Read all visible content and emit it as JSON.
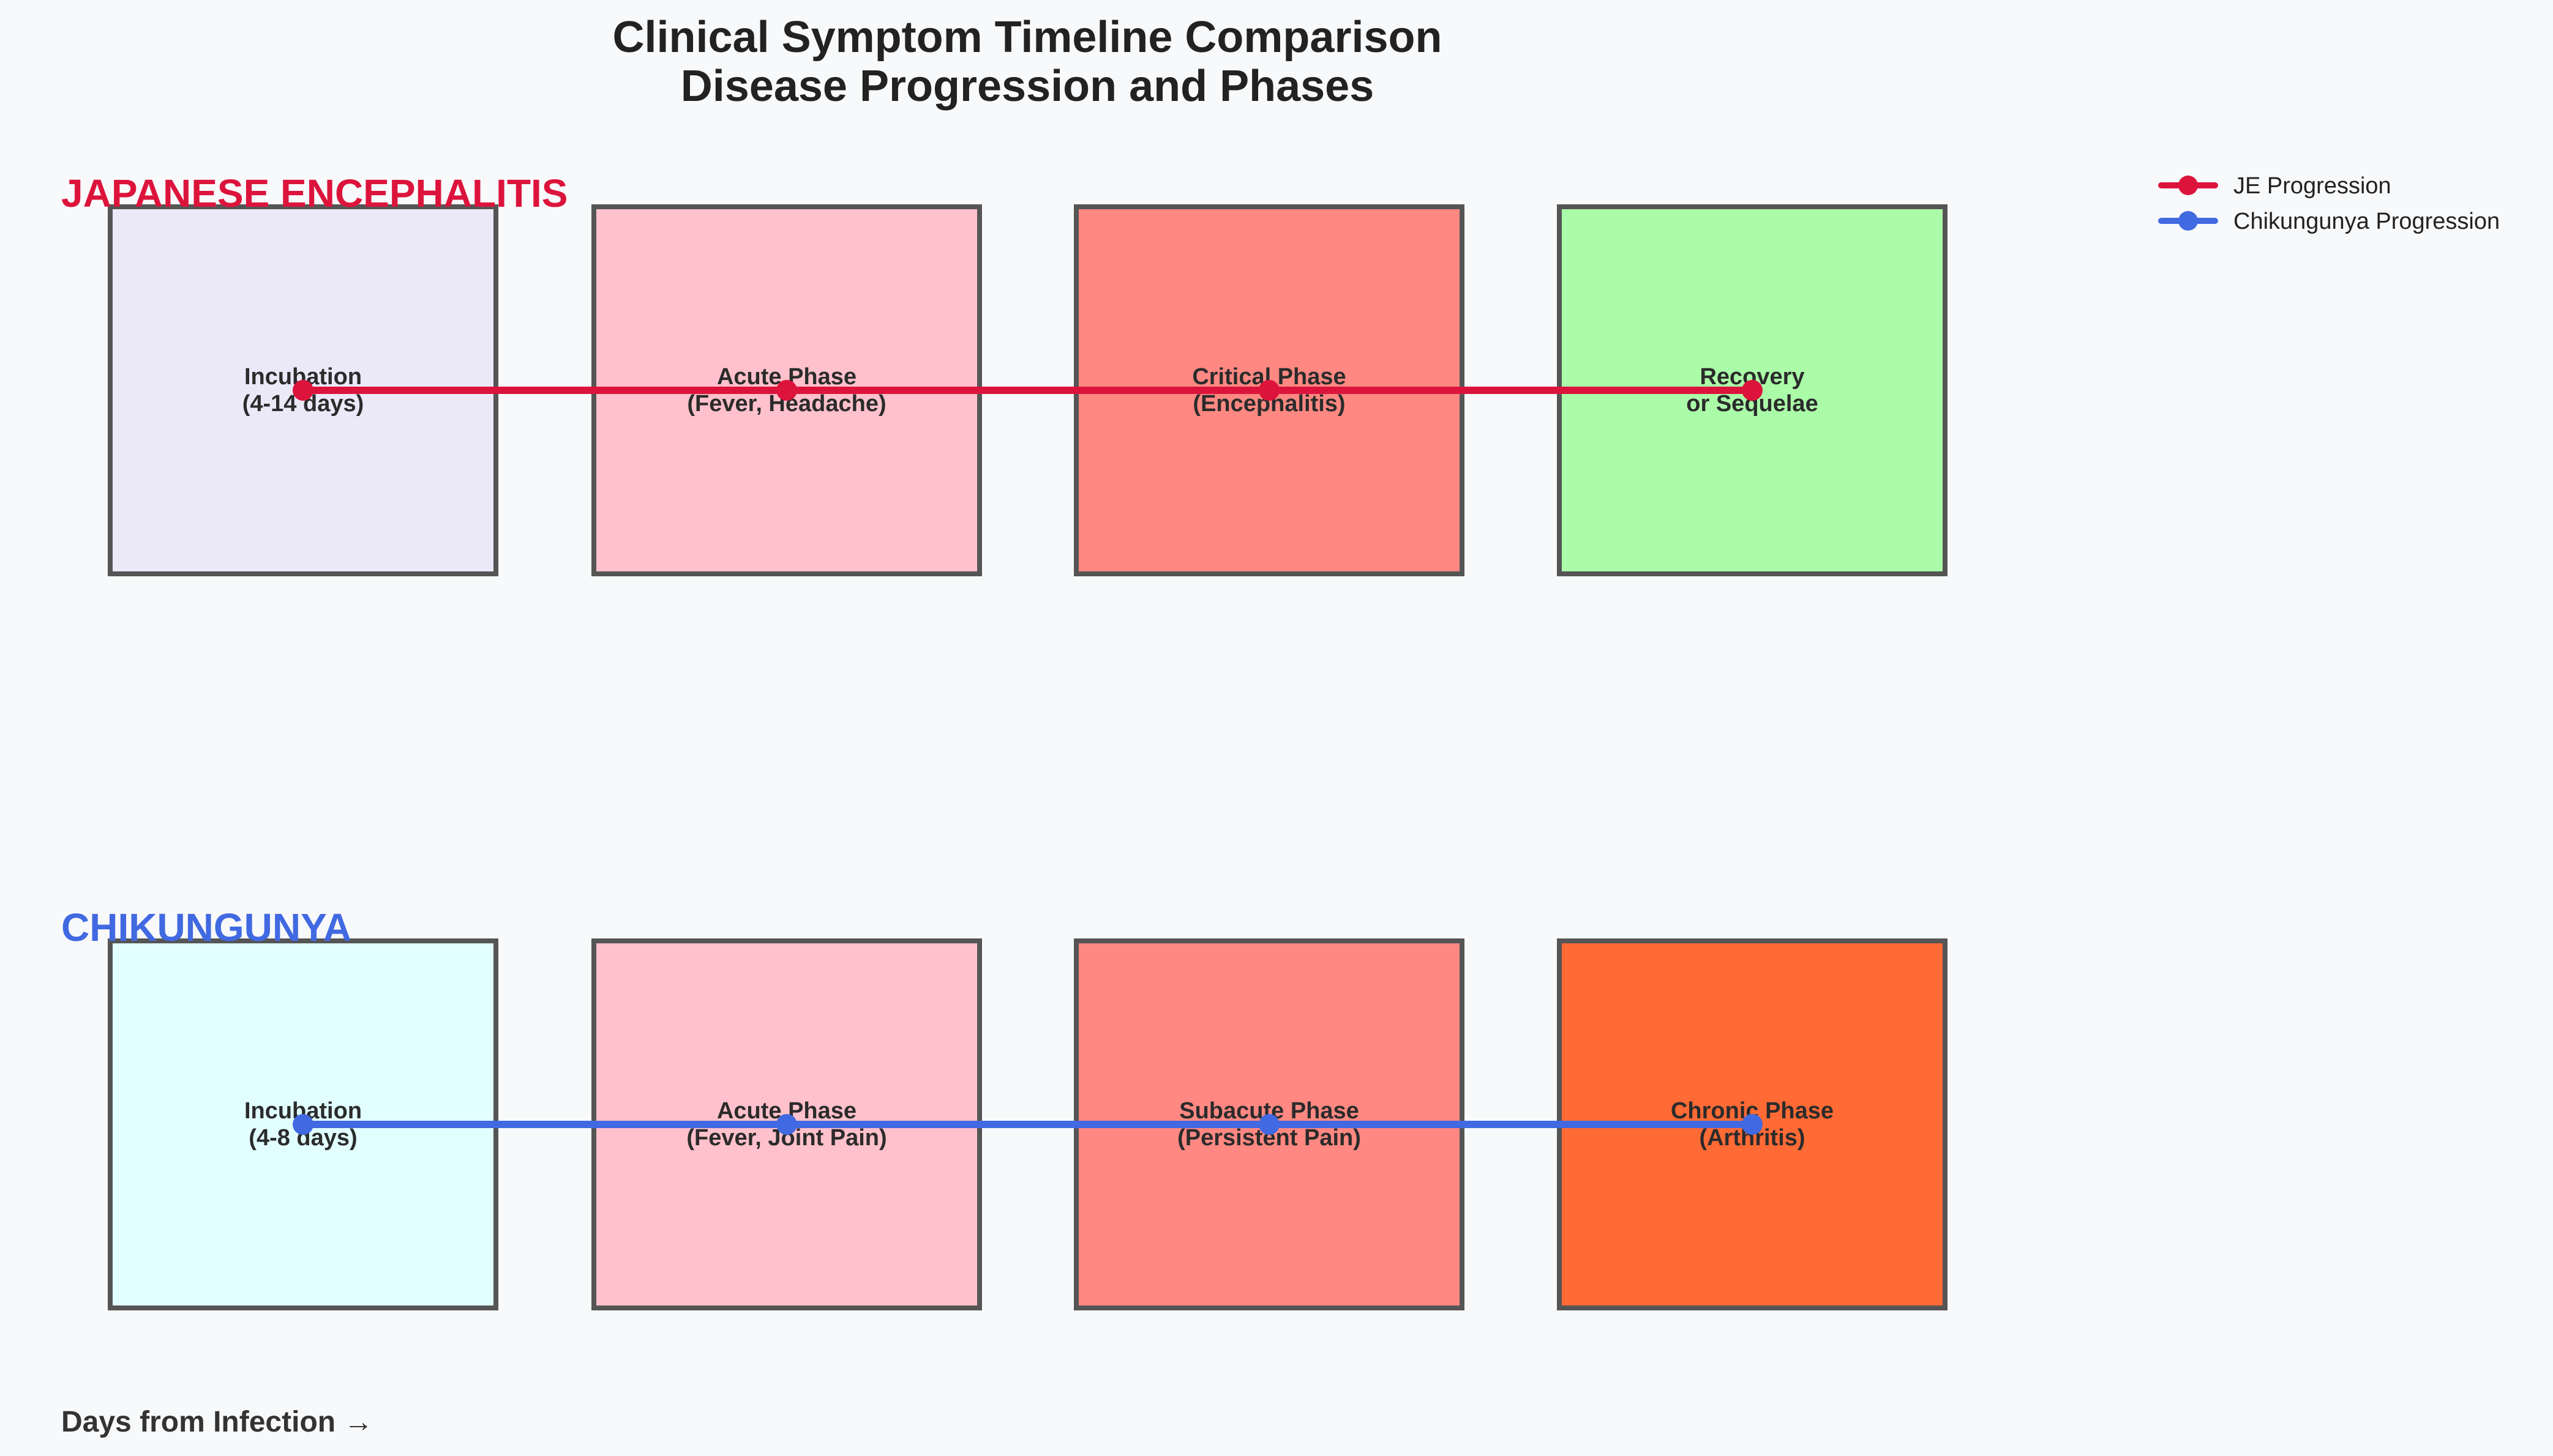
{
  "title": {
    "line1": "Clinical Symptom Timeline Comparison",
    "line2": "Disease Progression and Phases"
  },
  "diseases": [
    {
      "name": "JAPANESE ENCEPHALITIS",
      "color": "#dc143c",
      "phases": [
        {
          "line1": "Incubation",
          "line2": "(4-14 days)",
          "fill": "#ebe9f8"
        },
        {
          "line1": "Acute Phase",
          "line2": "(Fever, Headache)",
          "fill": "#ffc1cb"
        },
        {
          "line1": "Critical Phase",
          "line2": "(Encephalitis)",
          "fill": "#ff8882"
        },
        {
          "line1": "Recovery",
          "line2": "or Sequelae",
          "fill": "#abfca8"
        }
      ]
    },
    {
      "name": "CHIKUNGUNYA",
      "color": "#4169e1",
      "phases": [
        {
          "line1": "Incubation",
          "line2": "(4-8 days)",
          "fill": "#e2ffff"
        },
        {
          "line1": "Acute Phase",
          "line2": "(Fever, Joint Pain)",
          "fill": "#ffc1cb"
        },
        {
          "line1": "Subacute Phase",
          "line2": "(Persistent Pain)",
          "fill": "#ff8882"
        },
        {
          "line1": "Chronic Phase",
          "line2": "(Arthritis)",
          "fill": "#ff6a35"
        }
      ]
    }
  ],
  "legend": [
    {
      "label": "JE Progression",
      "color": "#dc143c"
    },
    {
      "label": "Chikungunya Progression",
      "color": "#4169e1"
    }
  ],
  "axis_label": "Days from Infection →",
  "box_border_color": "#555555"
}
